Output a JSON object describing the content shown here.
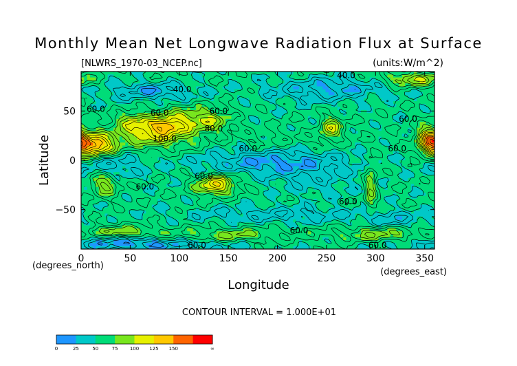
{
  "chart_data": {
    "type": "heatmap",
    "title": "Monthly Mean Net Longwave Radiation Flux at Surface",
    "file_label": "[NLWRS_1970-03_NCEP.nc]",
    "units_label": "(units:W/m^2)",
    "xlabel": "Longitude",
    "ylabel": "Latitude",
    "x_unit_label": "(degrees_east)",
    "y_unit_label": "(degrees_north)",
    "xlim": [
      0,
      360
    ],
    "ylim": [
      -90,
      90
    ],
    "x_ticks": [
      0,
      50,
      100,
      150,
      200,
      250,
      300,
      350
    ],
    "y_ticks": [
      50,
      0,
      -50
    ],
    "contour_interval_text": "CONTOUR INTERVAL = 1.000E+01",
    "contour_labels": [
      {
        "text": "40.0",
        "lon": 270,
        "lat": 86
      },
      {
        "text": "40.0",
        "lon": 103,
        "lat": 72
      },
      {
        "text": "60.0",
        "lon": 15,
        "lat": 52
      },
      {
        "text": "60.0",
        "lon": 80,
        "lat": 48
      },
      {
        "text": "60.0",
        "lon": 140,
        "lat": 50
      },
      {
        "text": "60.0",
        "lon": 333,
        "lat": 42
      },
      {
        "text": "80.0",
        "lon": 135,
        "lat": 32
      },
      {
        "text": "100.0",
        "lon": 85,
        "lat": 22
      },
      {
        "text": "60.0",
        "lon": 170,
        "lat": 12
      },
      {
        "text": "60.0",
        "lon": 322,
        "lat": 12
      },
      {
        "text": "60.0",
        "lon": 125,
        "lat": -16
      },
      {
        "text": "60.0",
        "lon": 65,
        "lat": -27
      },
      {
        "text": "60.0",
        "lon": 272,
        "lat": -42
      },
      {
        "text": "60.0",
        "lon": 222,
        "lat": -71
      },
      {
        "text": "60.0",
        "lon": 118,
        "lat": -86
      },
      {
        "text": "60.0",
        "lon": 302,
        "lat": -86
      }
    ],
    "colorbar": {
      "tick_labels": [
        "0",
        "25",
        "50",
        "75",
        "100",
        "125",
        "150",
        "∞"
      ],
      "colors": [
        "#1E96FF",
        "#00C8C8",
        "#00DC78",
        "#78E61E",
        "#E6F000",
        "#FFC800",
        "#FF6400",
        "#FF0000"
      ]
    },
    "blobs": [
      {
        "lon": 12,
        "lat": 15,
        "sx": 15,
        "sy": 8,
        "a": 95
      },
      {
        "lon": 75,
        "lat": 28,
        "sx": 26,
        "sy": 10,
        "a": 60
      },
      {
        "lon": 88,
        "lat": 35,
        "sx": 12,
        "sy": 5,
        "a": 40
      },
      {
        "lon": 52,
        "lat": 40,
        "sx": 12,
        "sy": 6,
        "a": 30
      },
      {
        "lon": 130,
        "lat": 40,
        "sx": 16,
        "sy": 8,
        "a": 38
      },
      {
        "lon": 100,
        "lat": 45,
        "sx": 18,
        "sy": 7,
        "a": 25
      },
      {
        "lon": 255,
        "lat": 33,
        "sx": 8,
        "sy": 8,
        "a": 45
      },
      {
        "lon": 355,
        "lat": 22,
        "sx": 8,
        "sy": 10,
        "a": 65
      },
      {
        "lon": 340,
        "lat": 82,
        "sx": 20,
        "sy": 5,
        "a": 45
      },
      {
        "lon": 295,
        "lat": -28,
        "sx": 4,
        "sy": 18,
        "a": 35
      },
      {
        "lon": 137,
        "lat": -25,
        "sx": 14,
        "sy": 7,
        "a": 65
      },
      {
        "lon": 24,
        "lat": -24,
        "sx": 10,
        "sy": 8,
        "a": 40
      },
      {
        "lon": 40,
        "lat": -72,
        "sx": 25,
        "sy": 4,
        "a": 32
      },
      {
        "lon": 150,
        "lat": -76,
        "sx": 45,
        "sy": 5,
        "a": 28
      },
      {
        "lon": 300,
        "lat": -75,
        "sx": 30,
        "sy": 5,
        "a": 32
      },
      {
        "lon": 200,
        "lat": 20,
        "sx": 60,
        "sy": 8,
        "a": 8
      },
      {
        "lon": 195,
        "lat": -2,
        "sx": 50,
        "sy": 9,
        "a": -35
      },
      {
        "lon": 30,
        "lat": -5,
        "sx": 25,
        "sy": 10,
        "a": -22
      },
      {
        "lon": 240,
        "lat": -20,
        "sx": 30,
        "sy": 12,
        "a": -12
      },
      {
        "lon": 70,
        "lat": 70,
        "sx": 30,
        "sy": 6,
        "a": -32
      },
      {
        "lon": 250,
        "lat": 72,
        "sx": 40,
        "sy": 8,
        "a": -30
      },
      {
        "lon": 200,
        "lat": -55,
        "sx": 60,
        "sy": 6,
        "a": -20
      },
      {
        "lon": 60,
        "lat": -85,
        "sx": 60,
        "sy": 5,
        "a": -35
      },
      {
        "lon": 320,
        "lat": -60,
        "sx": 25,
        "sy": 6,
        "a": -20
      }
    ]
  }
}
